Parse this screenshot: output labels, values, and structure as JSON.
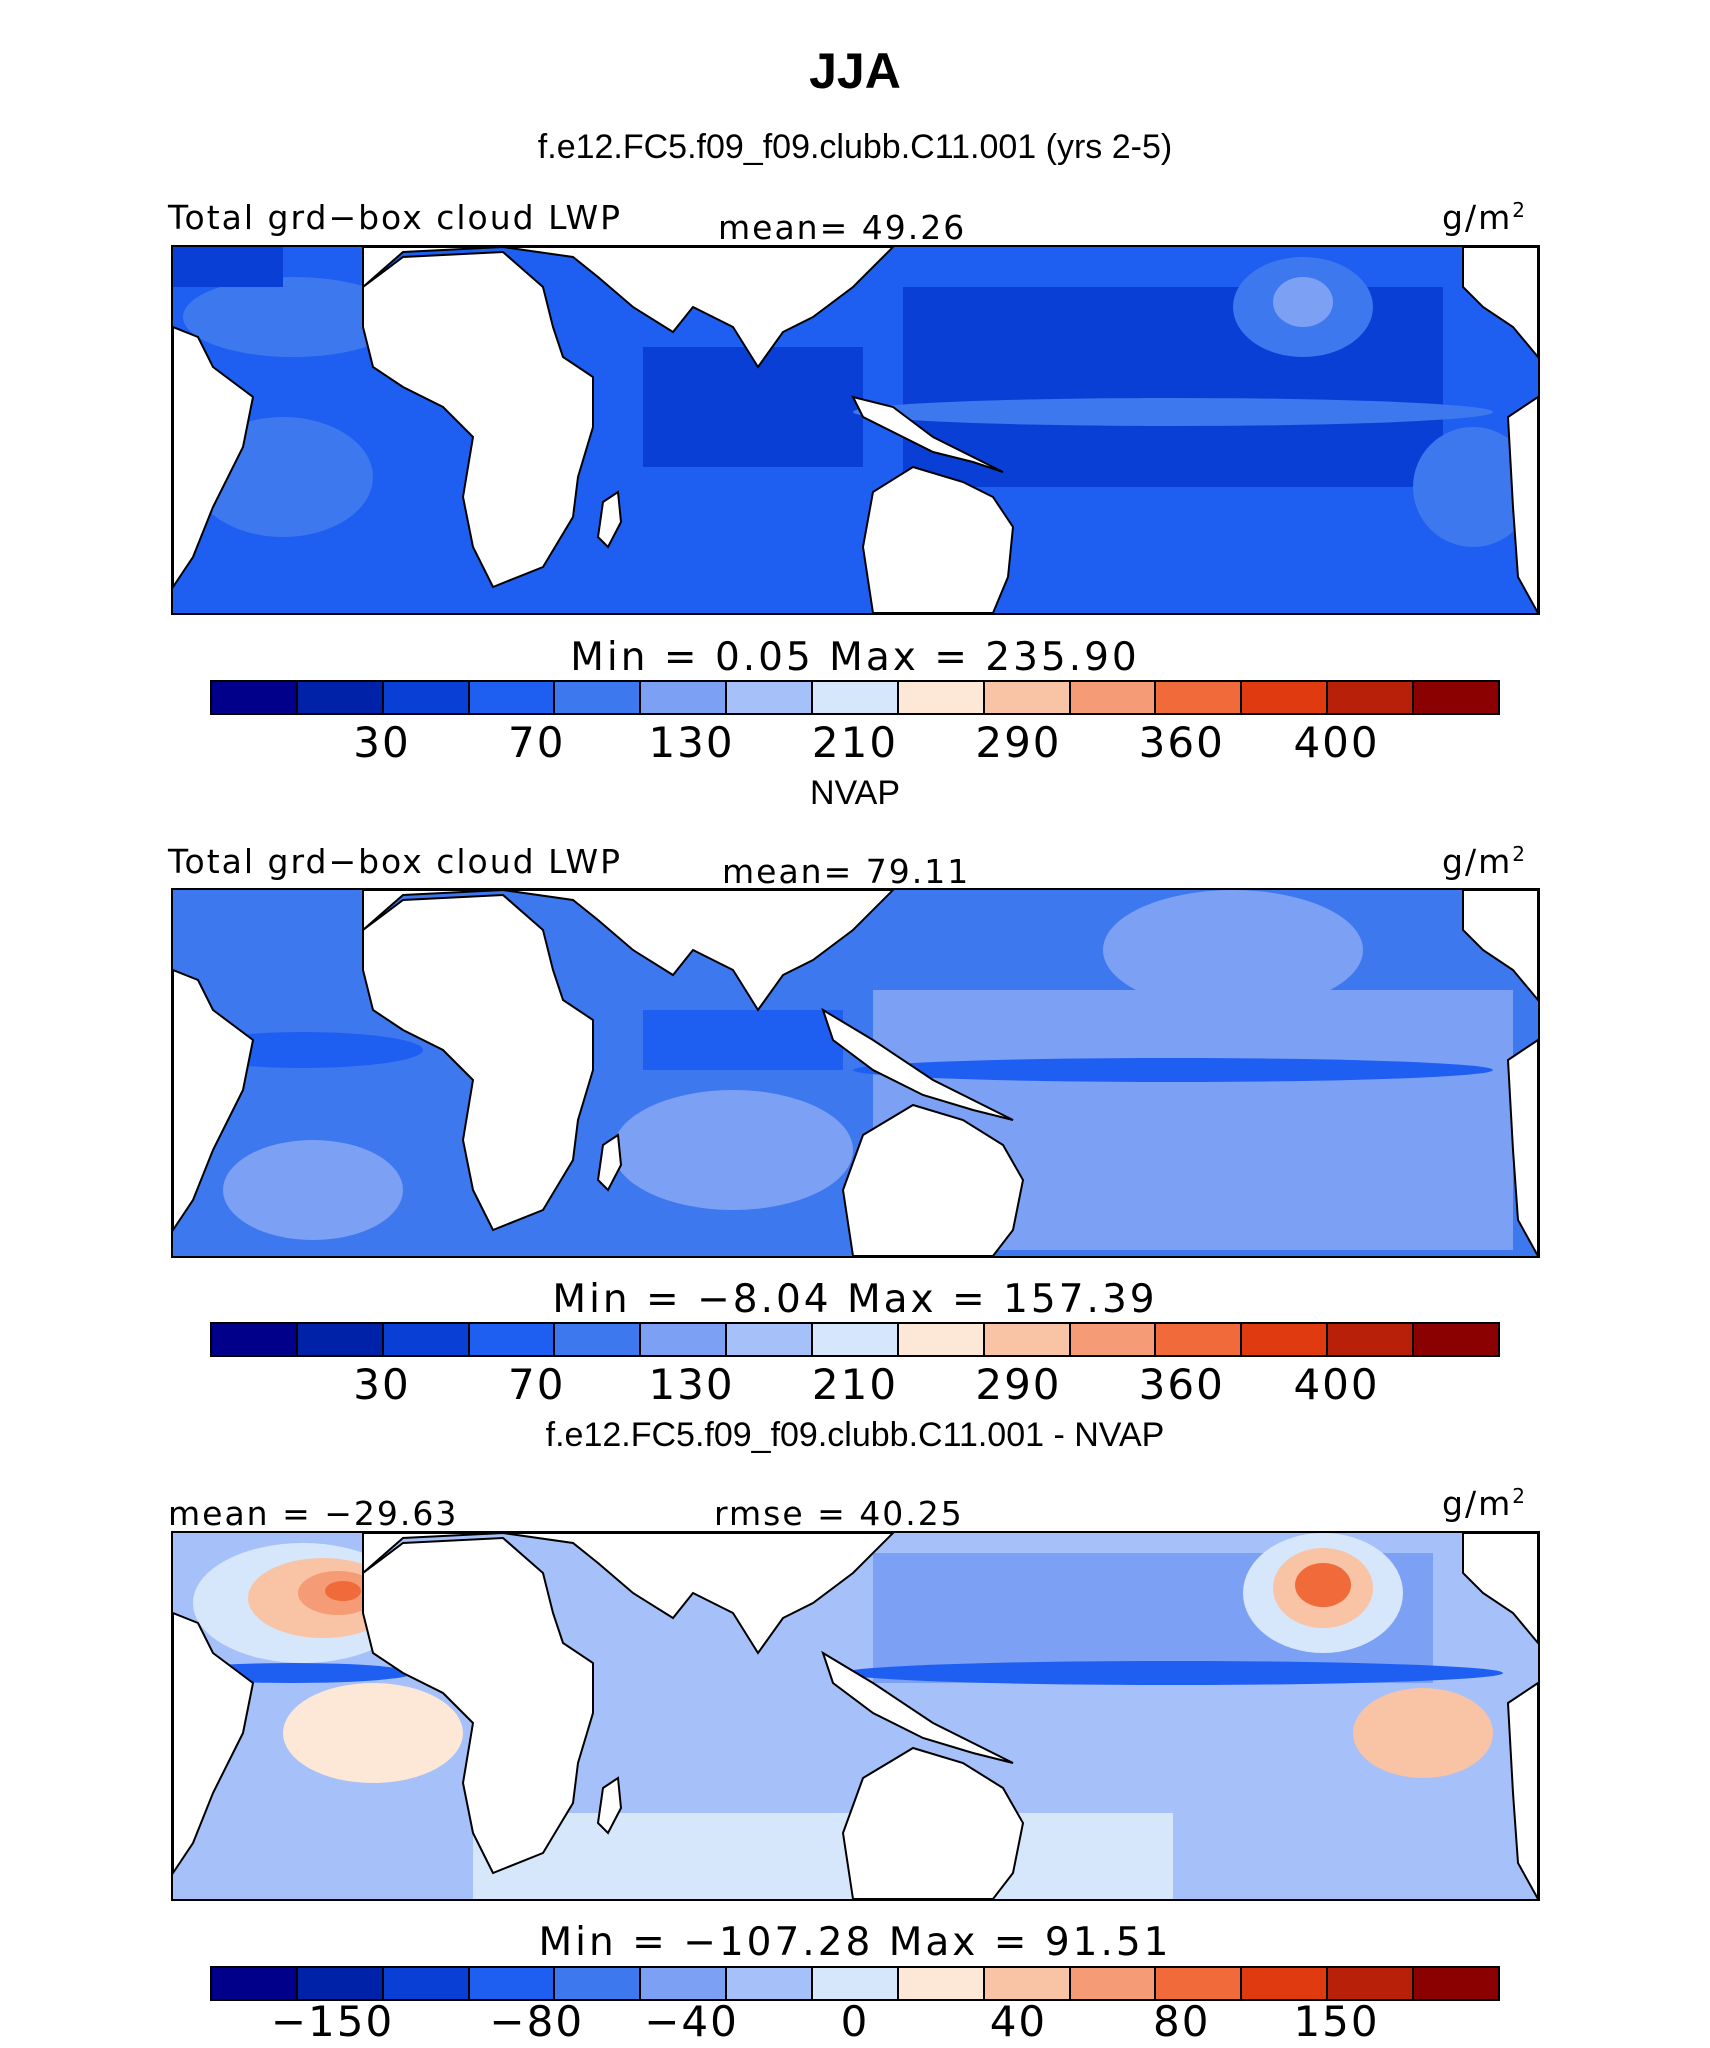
{
  "figure": {
    "season": "JJA",
    "panels": [
      {
        "title": "f.e12.FC5.f09_f09.clubb.C11.001 (yrs 2-5)",
        "left_label": "Total grd−box cloud LWP",
        "center_label": "mean=  49.26",
        "units": "g/m",
        "units_sup": "2",
        "minmax": "Min =    0.05 Max = 235.90",
        "tick_labels": [
          "30",
          "70",
          "130",
          "210",
          "290",
          "360",
          "400"
        ]
      },
      {
        "title": "NVAP",
        "left_label": "Total grd−box cloud LWP",
        "center_label": "mean=  79.11",
        "units": "g/m",
        "units_sup": "2",
        "minmax": "Min =  −8.04 Max = 157.39",
        "tick_labels": [
          "30",
          "70",
          "130",
          "210",
          "290",
          "360",
          "400"
        ]
      },
      {
        "title": "f.e12.FC5.f09_f09.clubb.C11.001 - NVAP",
        "left_label": "mean = −29.63",
        "center_label": "rmse =  40.25",
        "units": "g/m",
        "units_sup": "2",
        "minmax": "Min = −107.28 Max =  91.51",
        "tick_labels": [
          "−150",
          "−80",
          "−40",
          "0",
          "40",
          "80",
          "150"
        ]
      }
    ]
  },
  "colors": {
    "colorbar": [
      "#00008b",
      "#0022a8",
      "#0a3fd6",
      "#1e5ff2",
      "#3e78ee",
      "#7ca0f4",
      "#a6c1f9",
      "#d6e6fb",
      "#fde8d7",
      "#f9c3a5",
      "#f59c76",
      "#f16a3a",
      "#e03a10",
      "#b8200a",
      "#8b0000"
    ],
    "land": "#ffffff",
    "coast": "#000000"
  }
}
